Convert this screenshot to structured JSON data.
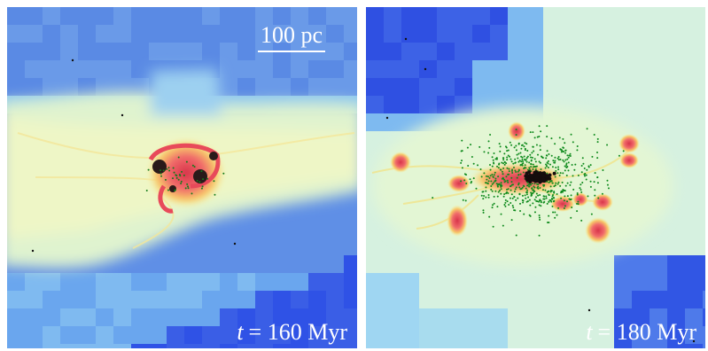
{
  "scale_bar": {
    "label": "100 pc"
  },
  "panels": [
    {
      "time_symbol": "t",
      "time_text": "= 160 Myr"
    },
    {
      "time_symbol": "t",
      "time_text": "= 180 Myr"
    }
  ]
}
